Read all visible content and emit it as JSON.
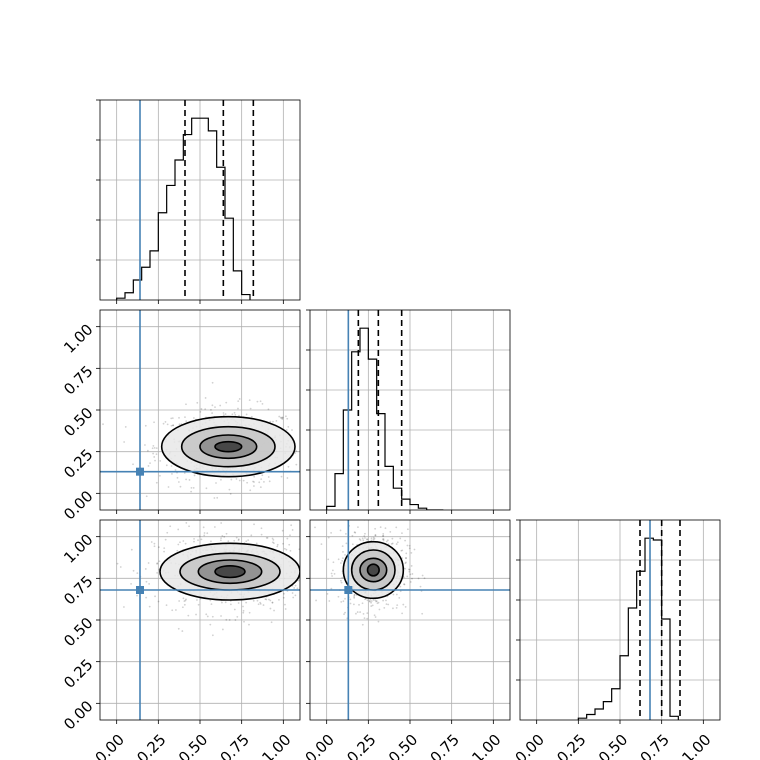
{
  "chart_data": {
    "type": "corner",
    "parameters": 3,
    "axis_range": [
      -0.1,
      1.1
    ],
    "ticks": [
      0.0,
      0.25,
      0.5,
      0.75,
      1.0
    ],
    "tick_labels": [
      "0.00",
      "0.25",
      "0.50",
      "0.75",
      "1.00"
    ],
    "grid": true,
    "truth_values": [
      0.14,
      0.13,
      0.68
    ],
    "truth_color": "#4682b4",
    "quantiles": [
      [
        0.41,
        0.64,
        0.82
      ],
      [
        0.19,
        0.31,
        0.45
      ],
      [
        0.62,
        0.75,
        0.86
      ]
    ],
    "histograms": [
      {
        "parameter": 0,
        "bin_start": 0.0,
        "bin_width": 0.05,
        "counts": [
          1,
          4,
          11,
          18,
          27,
          48,
          63,
          77,
          91,
          100,
          100,
          93,
          73,
          45,
          16,
          3
        ]
      },
      {
        "parameter": 1,
        "bin_start": 0.0,
        "bin_width": 0.05,
        "counts": [
          2,
          20,
          55,
          87,
          100,
          83,
          53,
          24,
          12,
          6,
          3,
          1,
          0,
          0
        ]
      },
      {
        "parameter": 2,
        "bin_start": 0.25,
        "bin_width": 0.05,
        "counts": [
          1,
          3,
          6,
          10,
          17,
          35,
          61,
          81,
          99,
          98,
          55,
          2
        ]
      }
    ],
    "density_panels": [
      {
        "x_param": 0,
        "y_param": 1,
        "center": [
          0.67,
          0.28
        ],
        "contour_half_widths": [
          [
            0.08,
            0.03
          ],
          [
            0.17,
            0.07
          ],
          [
            0.28,
            0.12
          ],
          [
            0.4,
            0.18
          ]
        ],
        "scatter_half_widths": [
          0.48,
          0.26
        ]
      },
      {
        "x_param": 0,
        "y_param": 2,
        "center": [
          0.68,
          0.79
        ],
        "contour_half_widths": [
          [
            0.09,
            0.035
          ],
          [
            0.19,
            0.07
          ],
          [
            0.3,
            0.11
          ],
          [
            0.42,
            0.17
          ]
        ],
        "scatter_half_widths": [
          0.5,
          0.27
        ]
      },
      {
        "x_param": 1,
        "y_param": 2,
        "center": [
          0.28,
          0.8
        ],
        "contour_half_widths": [
          [
            0.035,
            0.035
          ],
          [
            0.08,
            0.07
          ],
          [
            0.13,
            0.12
          ],
          [
            0.18,
            0.17
          ]
        ],
        "scatter_half_widths": [
          0.23,
          0.27
        ]
      }
    ]
  }
}
